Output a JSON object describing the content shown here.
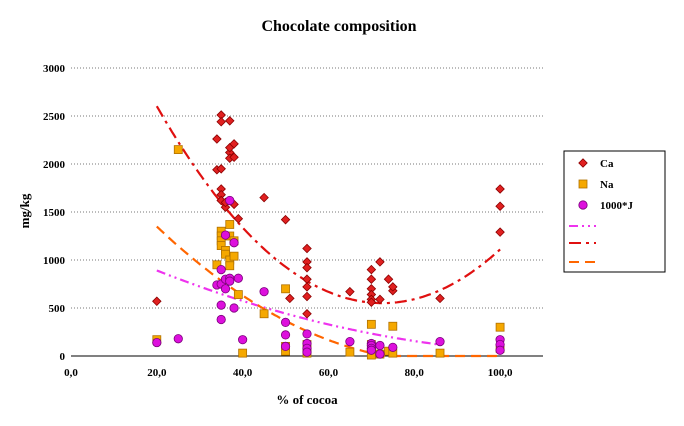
{
  "chart_data": {
    "type": "scatter",
    "title": "Chocolate composition",
    "xlabel": "% of cocoa",
    "ylabel": "mg/kg",
    "xlim": [
      0,
      110
    ],
    "ylim": [
      0,
      3000
    ],
    "x_ticks": [
      0,
      20,
      40,
      60,
      80,
      100
    ],
    "x_tick_labels": [
      "0,0",
      "20,0",
      "40,0",
      "60,0",
      "80,0",
      "100,0"
    ],
    "y_ticks": [
      0,
      500,
      1000,
      1500,
      2000,
      2500,
      3000
    ],
    "y_tick_labels": [
      "0",
      "500",
      "1000",
      "1500",
      "2000",
      "2500",
      "3000"
    ],
    "grid": "horizontal dotted",
    "legend_position": "right",
    "series": [
      {
        "name": "Ca",
        "marker": "diamond",
        "color": "#e02020",
        "points": [
          [
            20,
            570
          ],
          [
            34,
            2260
          ],
          [
            34,
            1940
          ],
          [
            35,
            2510
          ],
          [
            35,
            2440
          ],
          [
            35,
            1950
          ],
          [
            35,
            1740
          ],
          [
            35,
            1680
          ],
          [
            35,
            1620
          ],
          [
            36,
            1550
          ],
          [
            36,
            1600
          ],
          [
            37,
            2450
          ],
          [
            37,
            2120
          ],
          [
            37,
            2060
          ],
          [
            37,
            2170
          ],
          [
            38,
            2210
          ],
          [
            38,
            2070
          ],
          [
            38,
            1580
          ],
          [
            39,
            1430
          ],
          [
            45,
            1650
          ],
          [
            50,
            1420
          ],
          [
            51,
            600
          ],
          [
            55,
            1120
          ],
          [
            55,
            980
          ],
          [
            55,
            920
          ],
          [
            55,
            800
          ],
          [
            55,
            720
          ],
          [
            55,
            620
          ],
          [
            55,
            440
          ],
          [
            65,
            670
          ],
          [
            70,
            900
          ],
          [
            70,
            800
          ],
          [
            70,
            700
          ],
          [
            70,
            640
          ],
          [
            70,
            590
          ],
          [
            70,
            560
          ],
          [
            72,
            980
          ],
          [
            72,
            590
          ],
          [
            74,
            800
          ],
          [
            75,
            680
          ],
          [
            75,
            720
          ],
          [
            86,
            600
          ],
          [
            100,
            1740
          ],
          [
            100,
            1560
          ],
          [
            100,
            1290
          ]
        ]
      },
      {
        "name": "Na",
        "marker": "square",
        "color": "#f5a800",
        "points": [
          [
            20,
            170
          ],
          [
            25,
            2150
          ],
          [
            34,
            950
          ],
          [
            35,
            1300
          ],
          [
            35,
            1250
          ],
          [
            35,
            1200
          ],
          [
            35,
            1150
          ],
          [
            36,
            1100
          ],
          [
            36,
            1060
          ],
          [
            37,
            1370
          ],
          [
            37,
            1000
          ],
          [
            37,
            940
          ],
          [
            37,
            1250
          ],
          [
            38,
            1040
          ],
          [
            38,
            1200
          ],
          [
            39,
            640
          ],
          [
            40,
            30
          ],
          [
            45,
            440
          ],
          [
            50,
            700
          ],
          [
            50,
            100
          ],
          [
            50,
            50
          ],
          [
            55,
            120
          ],
          [
            55,
            60
          ],
          [
            55,
            30
          ],
          [
            65,
            40
          ],
          [
            70,
            330
          ],
          [
            70,
            120
          ],
          [
            70,
            80
          ],
          [
            70,
            40
          ],
          [
            70,
            10
          ],
          [
            72,
            20
          ],
          [
            74,
            50
          ],
          [
            75,
            310
          ],
          [
            75,
            30
          ],
          [
            86,
            30
          ],
          [
            100,
            300
          ],
          [
            100,
            80
          ]
        ]
      },
      {
        "name": "1000*J",
        "marker": "circle",
        "color": "#dd10dd",
        "points": [
          [
            20,
            140
          ],
          [
            25,
            180
          ],
          [
            34,
            740
          ],
          [
            35,
            900
          ],
          [
            35,
            750
          ],
          [
            35,
            530
          ],
          [
            35,
            380
          ],
          [
            36,
            1260
          ],
          [
            36,
            800
          ],
          [
            36,
            700
          ],
          [
            37,
            1620
          ],
          [
            37,
            810
          ],
          [
            37,
            780
          ],
          [
            38,
            1180
          ],
          [
            38,
            500
          ],
          [
            39,
            810
          ],
          [
            40,
            170
          ],
          [
            45,
            670
          ],
          [
            50,
            350
          ],
          [
            50,
            220
          ],
          [
            50,
            100
          ],
          [
            55,
            230
          ],
          [
            55,
            130
          ],
          [
            55,
            80
          ],
          [
            55,
            40
          ],
          [
            65,
            150
          ],
          [
            70,
            130
          ],
          [
            70,
            110
          ],
          [
            70,
            80
          ],
          [
            70,
            60
          ],
          [
            72,
            20
          ],
          [
            72,
            110
          ],
          [
            75,
            90
          ],
          [
            86,
            150
          ],
          [
            100,
            170
          ],
          [
            100,
            120
          ],
          [
            100,
            60
          ]
        ]
      }
    ],
    "trendlines": [
      {
        "series": "1000*J",
        "style": "dash-dot-dot",
        "color": "#ee33ee",
        "fit": "polynomial",
        "coeffs": [
          1280,
          -21.25,
          0.09
        ],
        "x_range": [
          20,
          86
        ]
      },
      {
        "series": "Ca",
        "style": "dash-dot",
        "color": "#e01010",
        "fit": "polynomial",
        "coeffs": [
          4460,
          -107.75,
          0.7425
        ],
        "x_range": [
          20,
          100
        ]
      },
      {
        "series": "Na",
        "style": "dash",
        "color": "#ff6600",
        "fit": "polynomial",
        "coeffs": [
          2320.35,
          -55.0,
          0.3185
        ],
        "x_range": [
          20,
          100
        ]
      }
    ]
  }
}
